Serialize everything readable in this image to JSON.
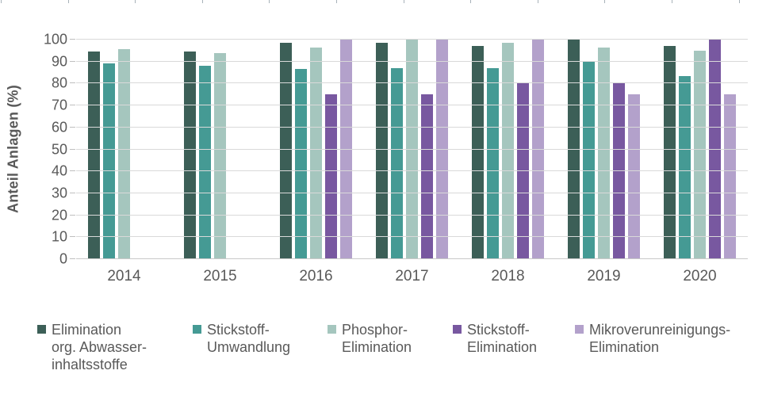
{
  "chart_data": {
    "type": "bar",
    "title": "",
    "xlabel": "",
    "ylabel": "Anteil Anlagen (%)",
    "ylim": [
      0,
      100
    ],
    "ytick_step": 10,
    "ytick_labels": [
      "0",
      "10",
      "20",
      "30",
      "40",
      "50",
      "60",
      "70",
      "80",
      "90",
      "100"
    ],
    "grid": "horizontal",
    "legend_position": "bottom",
    "categories": [
      "2014",
      "2015",
      "2016",
      "2017",
      "2018",
      "2019",
      "2020"
    ],
    "series": [
      {
        "name": "Elimination org. Abwasser-inhaltsstoffe",
        "legend_lines": "Elimination\norg. Abwasser-\ninhaltsstoffe",
        "color": "#3c5f57",
        "values": [
          94.5,
          94.5,
          98.5,
          98.5,
          97,
          100,
          97
        ]
      },
      {
        "name": "Stickstoff-Umwandlung",
        "legend_lines": "Stickstoff-\nUmwandlung",
        "color": "#459a94",
        "values": [
          89,
          88,
          86.5,
          87,
          87,
          90,
          83.5
        ]
      },
      {
        "name": "Phosphor-Elimination",
        "legend_lines": "Phosphor-\nElimination",
        "color": "#a5c6be",
        "values": [
          95.5,
          94,
          96.5,
          100,
          98.5,
          96.5,
          95
        ]
      },
      {
        "name": "Stickstoff-Elimination",
        "legend_lines": "Stickstoff-\nElimination",
        "color": "#7858a0",
        "values": [
          null,
          null,
          75,
          75,
          80,
          80,
          100
        ]
      },
      {
        "name": "Mikroverunreinigungs-Elimination",
        "legend_lines": "Mikroverunreinigungs-\nElimination",
        "color": "#b3a1cb",
        "values": [
          null,
          null,
          100,
          100,
          100,
          75,
          75
        ]
      }
    ]
  },
  "decorations": {
    "top_ruler_tick_count": 12
  },
  "colors": {
    "text": "#595959",
    "gridline": "#d9d9d9",
    "axis_tick": "#bfbfbf",
    "top_ruler_tick": "#a8b2b9"
  }
}
